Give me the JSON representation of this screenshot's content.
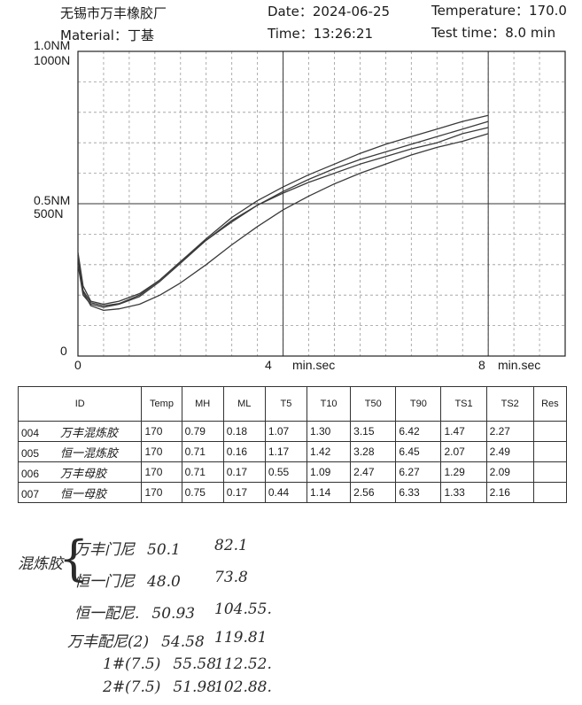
{
  "header": {
    "company": "无锡市万丰橡胶厂",
    "material_label": "Material：丁基",
    "date": "Date：2024-06-25",
    "time": "Time：13:26:21",
    "temperature": "Temperature：170.0",
    "test_time": "Test time：8.0 min"
  },
  "chart_data": {
    "type": "line",
    "xlabel": "min.sec",
    "ylabel_top_nm": "1.0NM",
    "ylabel_top_n": "1000N",
    "ylabel_mid_nm": "0.5NM",
    "ylabel_mid_n": "500N",
    "y_zero": "0",
    "x_ticks": [
      "0",
      "4",
      "8"
    ],
    "xlim": [
      0,
      9.5
    ],
    "ylim": [
      0,
      1.0
    ],
    "grid": true,
    "series": [
      {
        "x": [
          0,
          0.1,
          0.25,
          0.5,
          0.8,
          1.2,
          1.6,
          2.0,
          2.5,
          3.0,
          3.5,
          4.0,
          4.5,
          5.0,
          5.5,
          6.0,
          6.5,
          7.0,
          7.5,
          8.0
        ],
        "y": [
          0.34,
          0.23,
          0.18,
          0.17,
          0.18,
          0.205,
          0.25,
          0.31,
          0.385,
          0.455,
          0.51,
          0.555,
          0.595,
          0.63,
          0.665,
          0.695,
          0.72,
          0.745,
          0.77,
          0.79
        ]
      },
      {
        "x": [
          0,
          0.1,
          0.25,
          0.5,
          0.8,
          1.2,
          1.6,
          2.0,
          2.5,
          3.0,
          3.5,
          4.0,
          4.5,
          5.0,
          5.5,
          6.0,
          6.5,
          7.0,
          7.5,
          8.0
        ],
        "y": [
          0.3,
          0.2,
          0.17,
          0.16,
          0.17,
          0.195,
          0.245,
          0.305,
          0.38,
          0.445,
          0.495,
          0.535,
          0.57,
          0.6,
          0.63,
          0.655,
          0.68,
          0.7,
          0.73,
          0.75
        ]
      },
      {
        "x": [
          0,
          0.1,
          0.25,
          0.5,
          0.8,
          1.2,
          1.6,
          2.0,
          2.5,
          3.0,
          3.5,
          4.0,
          4.5,
          5.0,
          5.5,
          6.0,
          6.5,
          7.0,
          7.5,
          8.0
        ],
        "y": [
          0.32,
          0.215,
          0.175,
          0.165,
          0.172,
          0.2,
          0.25,
          0.31,
          0.38,
          0.44,
          0.495,
          0.54,
          0.58,
          0.615,
          0.645,
          0.67,
          0.695,
          0.72,
          0.745,
          0.77
        ]
      },
      {
        "x": [
          0,
          0.1,
          0.25,
          0.5,
          0.8,
          1.2,
          1.6,
          2.0,
          2.5,
          3.0,
          3.5,
          4.0,
          4.5,
          5.0,
          5.5,
          6.0,
          6.5,
          7.0,
          7.5,
          8.0
        ],
        "y": [
          0.33,
          0.21,
          0.165,
          0.15,
          0.155,
          0.17,
          0.2,
          0.24,
          0.3,
          0.365,
          0.425,
          0.48,
          0.525,
          0.565,
          0.6,
          0.63,
          0.66,
          0.685,
          0.705,
          0.73
        ]
      }
    ]
  },
  "table": {
    "headers": [
      "ID",
      "Temp",
      "MH",
      "ML",
      "T5",
      "T10",
      "T50",
      "T90",
      "TS1",
      "TS2",
      "Res"
    ],
    "rows": [
      {
        "id": "004",
        "note": "万丰混炼胶",
        "cells": [
          "170",
          "0.79",
          "0.18",
          "1.07",
          "1.30",
          "3.15",
          "6.42",
          "1.47",
          "2.27",
          ""
        ]
      },
      {
        "id": "005",
        "note": "恒一混炼胶",
        "cells": [
          "170",
          "0.71",
          "0.16",
          "1.17",
          "1.42",
          "3.28",
          "6.45",
          "2.07",
          "2.49",
          ""
        ]
      },
      {
        "id": "006",
        "note": "万丰母胶",
        "cells": [
          "170",
          "0.71",
          "0.17",
          "0.55",
          "1.09",
          "2.47",
          "6.27",
          "1.29",
          "2.09",
          ""
        ]
      },
      {
        "id": "007",
        "note": "恒一母胶",
        "cells": [
          "170",
          "0.75",
          "0.17",
          "0.44",
          "1.14",
          "2.56",
          "6.33",
          "1.33",
          "2.16",
          ""
        ]
      }
    ]
  },
  "handwritten": {
    "group_label": "混炼胶",
    "lines": [
      {
        "label": "万丰门尼",
        "v1": "50.1",
        "v2": "82.1"
      },
      {
        "label": "恒一门尼",
        "v1": "48.0",
        "v2": "73.8"
      },
      {
        "label": "恒一配尼.",
        "v1": "50.93",
        "v2": "104.55."
      },
      {
        "label": "万丰配尼(2)",
        "v1": "54.58",
        "v2": "119.81"
      },
      {
        "label": "1#(7.5)",
        "v1": "55.58",
        "v2": "112.52."
      },
      {
        "label": "2#(7.5)",
        "v1": "51.98",
        "v2": "102.88."
      }
    ]
  }
}
